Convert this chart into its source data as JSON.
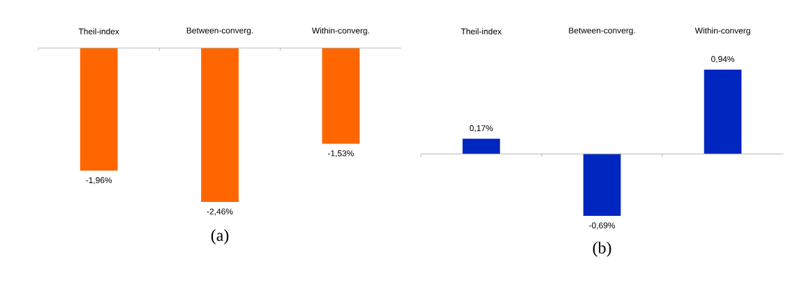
{
  "chart_data": [
    {
      "type": "bar",
      "categories": [
        "Theil-index",
        "Between-converg.",
        "Within-converg."
      ],
      "values": [
        -1.96,
        -2.46,
        -1.53
      ],
      "value_labels": [
        "-1,96%",
        "-2,46%",
        "-1,53%"
      ],
      "color": "#ff6600",
      "annotations": [
        "(a)"
      ]
    },
    {
      "type": "bar",
      "categories": [
        "Theil-index",
        "Between-converg.",
        "Within-converg"
      ],
      "values": [
        0.17,
        -0.69,
        0.94
      ],
      "value_labels": [
        "0,17%",
        "-0,69%",
        "0,94%"
      ],
      "color": "#0026c0",
      "annotations": [
        "(b)"
      ]
    }
  ]
}
